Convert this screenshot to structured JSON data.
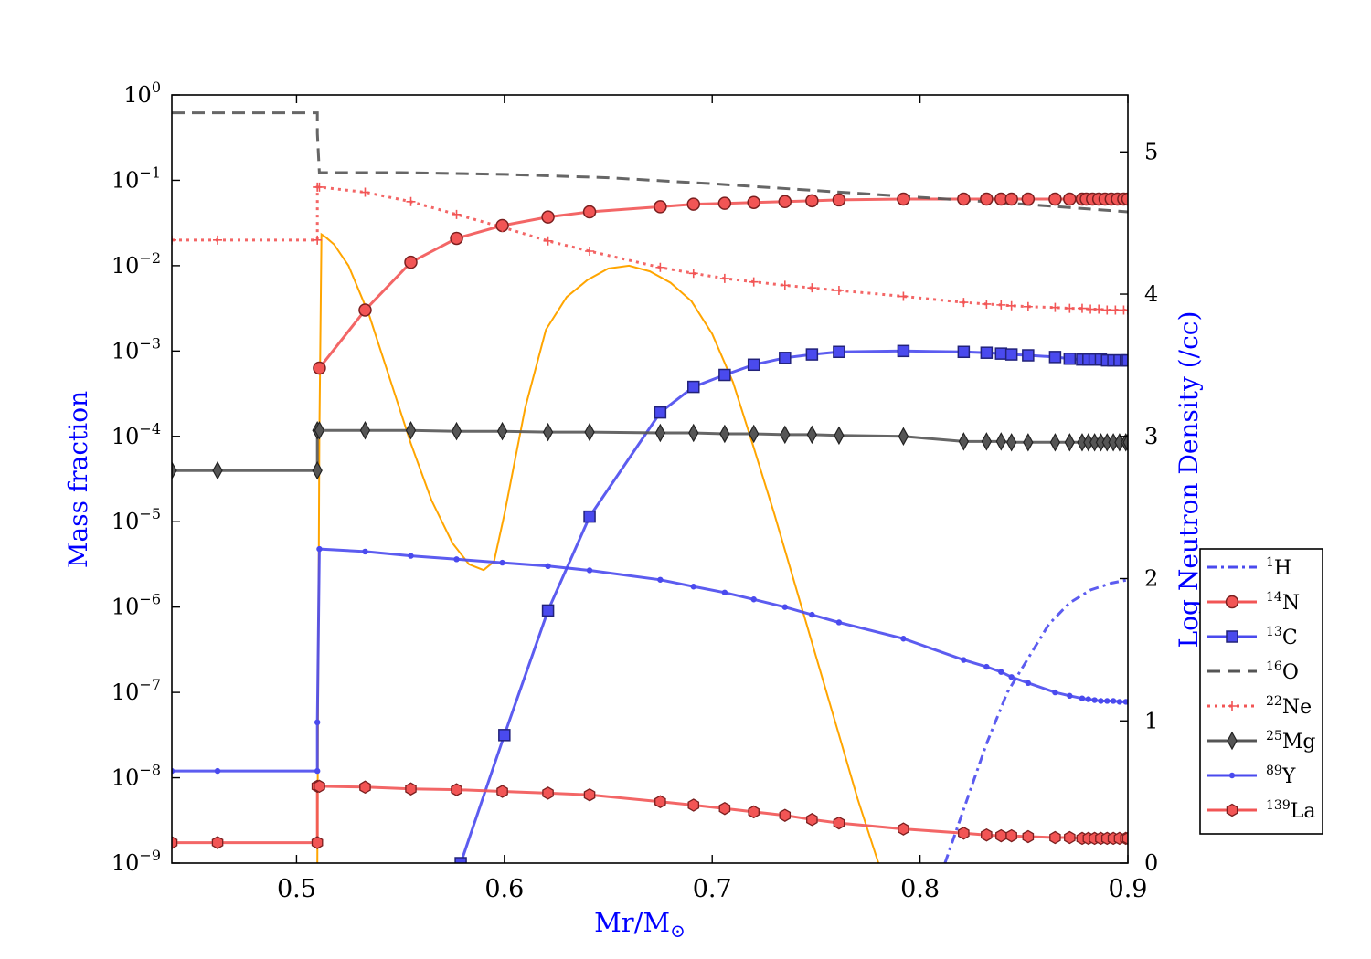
{
  "chart_data": {
    "type": "line",
    "title": "",
    "xlabel": "Mr/M",
    "xlabel_symbol": "⊙",
    "ylabel": "Mass fraction",
    "y2label": "Log Neutron Density (/cc)",
    "xlim": [
      0.44,
      0.9
    ],
    "ylim_log10": [
      -9,
      0
    ],
    "y2lim": [
      0,
      5.4
    ],
    "xticks": [
      "0.5",
      "0.6",
      "0.7",
      "0.8",
      "0.9"
    ],
    "xtick_values": [
      0.5,
      0.6,
      0.7,
      0.8,
      0.9
    ],
    "yticks": [
      {
        "base": "10",
        "exp": "0",
        "value": 0
      },
      {
        "base": "10",
        "exp": "−1",
        "value": -1
      },
      {
        "base": "10",
        "exp": "−2",
        "value": -2
      },
      {
        "base": "10",
        "exp": "−3",
        "value": -3
      },
      {
        "base": "10",
        "exp": "−4",
        "value": -4
      },
      {
        "base": "10",
        "exp": "−5",
        "value": -5
      },
      {
        "base": "10",
        "exp": "−6",
        "value": -6
      },
      {
        "base": "10",
        "exp": "−7",
        "value": -7
      },
      {
        "base": "10",
        "exp": "−8",
        "value": -8
      },
      {
        "base": "10",
        "exp": "−9",
        "value": -9
      }
    ],
    "y2ticks": [
      "0",
      "1",
      "2",
      "3",
      "4",
      "5"
    ],
    "y2tick_values": [
      0,
      1,
      2,
      3,
      4,
      5
    ],
    "colors": {
      "red": "#f25555",
      "blue": "#4a4aee",
      "gray": "#555555",
      "orange": "#ffa500",
      "axis_label": "#0000ff"
    },
    "series": [
      {
        "name": "H",
        "mass_number": "1",
        "color": "#4a4aee",
        "style": "dashdot",
        "marker": "none",
        "x": [
          0.812,
          0.822,
          0.832,
          0.842,
          0.852,
          0.862,
          0.872,
          0.882,
          0.892,
          0.9
        ],
        "log10_y": [
          -9.0,
          -8.3,
          -7.6,
          -7.0,
          -6.6,
          -6.2,
          -5.95,
          -5.8,
          -5.72,
          -5.68
        ]
      },
      {
        "name": "N",
        "mass_number": "14",
        "color": "#f25555",
        "style": "solid",
        "marker": "circle",
        "x": [
          0.511,
          0.533,
          0.555,
          0.577,
          0.599,
          0.621,
          0.641,
          0.675,
          0.691,
          0.706,
          0.72,
          0.735,
          0.748,
          0.761,
          0.792,
          0.821,
          0.832,
          0.839,
          0.844,
          0.852,
          0.865,
          0.872,
          0.878,
          0.88,
          0.883,
          0.886,
          0.889,
          0.892,
          0.895,
          0.898,
          0.9
        ],
        "log10_y": [
          -3.2,
          -2.52,
          -1.96,
          -1.68,
          -1.53,
          -1.43,
          -1.37,
          -1.31,
          -1.28,
          -1.27,
          -1.26,
          -1.25,
          -1.24,
          -1.23,
          -1.22,
          -1.22,
          -1.22,
          -1.22,
          -1.22,
          -1.22,
          -1.22,
          -1.22,
          -1.22,
          -1.22,
          -1.22,
          -1.22,
          -1.22,
          -1.22,
          -1.22,
          -1.22,
          -1.22
        ]
      },
      {
        "name": "C",
        "mass_number": "13",
        "color": "#4a4aee",
        "style": "solid",
        "marker": "square",
        "x": [
          0.579,
          0.6,
          0.621,
          0.641,
          0.675,
          0.691,
          0.706,
          0.72,
          0.735,
          0.748,
          0.761,
          0.792,
          0.821,
          0.832,
          0.839,
          0.844,
          0.852,
          0.865,
          0.872,
          0.878,
          0.881,
          0.884,
          0.887,
          0.89,
          0.893,
          0.896,
          0.899,
          0.9
        ],
        "log10_y": [
          -9.0,
          -7.5,
          -6.04,
          -4.94,
          -3.72,
          -3.42,
          -3.28,
          -3.16,
          -3.08,
          -3.04,
          -3.01,
          -3.0,
          -3.01,
          -3.02,
          -3.03,
          -3.04,
          -3.05,
          -3.07,
          -3.09,
          -3.1,
          -3.1,
          -3.1,
          -3.1,
          -3.11,
          -3.11,
          -3.11,
          -3.11,
          -3.11
        ]
      },
      {
        "name": "O",
        "mass_number": "16",
        "color": "#555555",
        "style": "dashed",
        "marker": "none",
        "x": [
          0.44,
          0.51,
          0.51,
          0.511,
          0.55,
          0.6,
          0.65,
          0.7,
          0.75,
          0.8,
          0.85,
          0.9
        ],
        "log10_y": [
          -0.21,
          -0.21,
          -0.45,
          -0.91,
          -0.91,
          -0.93,
          -0.97,
          -1.04,
          -1.12,
          -1.2,
          -1.28,
          -1.37
        ]
      },
      {
        "name": "Ne",
        "mass_number": "22",
        "color": "#f25555",
        "style": "dotted",
        "marker": "plus",
        "x": [
          0.44,
          0.462,
          0.51,
          0.51,
          0.511,
          0.533,
          0.555,
          0.577,
          0.599,
          0.621,
          0.641,
          0.675,
          0.691,
          0.706,
          0.72,
          0.735,
          0.748,
          0.761,
          0.792,
          0.821,
          0.832,
          0.839,
          0.844,
          0.852,
          0.865,
          0.872,
          0.878,
          0.882,
          0.886,
          0.89,
          0.894,
          0.898,
          0.9
        ],
        "log10_y": [
          -1.7,
          -1.7,
          -1.7,
          -1.08,
          -1.08,
          -1.14,
          -1.25,
          -1.4,
          -1.55,
          -1.71,
          -1.83,
          -2.02,
          -2.09,
          -2.15,
          -2.19,
          -2.23,
          -2.26,
          -2.29,
          -2.36,
          -2.43,
          -2.45,
          -2.46,
          -2.47,
          -2.48,
          -2.49,
          -2.5,
          -2.5,
          -2.51,
          -2.51,
          -2.52,
          -2.52,
          -2.52,
          -2.52
        ]
      },
      {
        "name": "Mg",
        "mass_number": "25",
        "color": "#555555",
        "style": "solid",
        "marker": "diamond",
        "x": [
          0.44,
          0.462,
          0.51,
          0.51,
          0.511,
          0.533,
          0.555,
          0.577,
          0.599,
          0.621,
          0.641,
          0.675,
          0.691,
          0.706,
          0.72,
          0.735,
          0.748,
          0.761,
          0.792,
          0.821,
          0.832,
          0.839,
          0.844,
          0.852,
          0.865,
          0.872,
          0.878,
          0.881,
          0.884,
          0.887,
          0.89,
          0.893,
          0.896,
          0.899,
          0.9
        ],
        "log10_y": [
          -4.4,
          -4.4,
          -4.4,
          -3.93,
          -3.93,
          -3.93,
          -3.93,
          -3.94,
          -3.94,
          -3.95,
          -3.95,
          -3.96,
          -3.96,
          -3.97,
          -3.97,
          -3.98,
          -3.98,
          -3.99,
          -4.0,
          -4.06,
          -4.06,
          -4.06,
          -4.07,
          -4.07,
          -4.07,
          -4.07,
          -4.07,
          -4.07,
          -4.07,
          -4.07,
          -4.07,
          -4.07,
          -4.07,
          -4.07,
          -4.07
        ]
      },
      {
        "name": "Y",
        "mass_number": "89",
        "color": "#4a4aee",
        "style": "solid",
        "marker": "dot",
        "x": [
          0.44,
          0.462,
          0.51,
          0.51,
          0.511,
          0.533,
          0.555,
          0.577,
          0.599,
          0.621,
          0.641,
          0.675,
          0.691,
          0.706,
          0.72,
          0.735,
          0.748,
          0.761,
          0.792,
          0.821,
          0.832,
          0.839,
          0.844,
          0.852,
          0.865,
          0.872,
          0.878,
          0.881,
          0.884,
          0.887,
          0.89,
          0.893,
          0.896,
          0.899,
          0.9
        ],
        "log10_y": [
          -7.92,
          -7.92,
          -7.92,
          -7.35,
          -5.32,
          -5.35,
          -5.4,
          -5.44,
          -5.48,
          -5.52,
          -5.57,
          -5.68,
          -5.76,
          -5.83,
          -5.91,
          -6.0,
          -6.09,
          -6.18,
          -6.37,
          -6.62,
          -6.7,
          -6.76,
          -6.82,
          -6.89,
          -7.0,
          -7.04,
          -7.07,
          -7.08,
          -7.09,
          -7.1,
          -7.1,
          -7.1,
          -7.11,
          -7.11,
          -7.11
        ]
      },
      {
        "name": "La",
        "mass_number": "139",
        "color": "#f25555",
        "style": "solid",
        "marker": "hexagon",
        "x": [
          0.44,
          0.462,
          0.51,
          0.51,
          0.511,
          0.533,
          0.555,
          0.577,
          0.599,
          0.621,
          0.641,
          0.675,
          0.691,
          0.706,
          0.72,
          0.735,
          0.748,
          0.761,
          0.792,
          0.821,
          0.832,
          0.839,
          0.844,
          0.852,
          0.865,
          0.872,
          0.878,
          0.881,
          0.884,
          0.887,
          0.89,
          0.893,
          0.896,
          0.899,
          0.9
        ],
        "log10_y": [
          -8.76,
          -8.76,
          -8.76,
          -8.1,
          -8.1,
          -8.11,
          -8.13,
          -8.14,
          -8.16,
          -8.18,
          -8.2,
          -8.28,
          -8.32,
          -8.36,
          -8.4,
          -8.44,
          -8.49,
          -8.53,
          -8.6,
          -8.65,
          -8.67,
          -8.68,
          -8.68,
          -8.69,
          -8.7,
          -8.7,
          -8.71,
          -8.71,
          -8.71,
          -8.71,
          -8.71,
          -8.71,
          -8.71,
          -8.71,
          -8.71
        ]
      }
    ],
    "neutron_density": {
      "name": "Log Neutron Density",
      "axis": "right",
      "color": "#ffa500",
      "x": [
        0.51,
        0.511,
        0.512,
        0.514,
        0.518,
        0.525,
        0.535,
        0.545,
        0.555,
        0.565,
        0.575,
        0.583,
        0.59,
        0.595,
        0.6,
        0.61,
        0.62,
        0.63,
        0.64,
        0.65,
        0.66,
        0.67,
        0.68,
        0.69,
        0.7,
        0.71,
        0.72,
        0.73,
        0.74,
        0.75,
        0.76,
        0.77,
        0.78
      ],
      "y": [
        0.0,
        3.0,
        4.42,
        4.4,
        4.35,
        4.2,
        3.85,
        3.4,
        2.95,
        2.55,
        2.25,
        2.1,
        2.06,
        2.12,
        2.45,
        3.2,
        3.75,
        3.98,
        4.1,
        4.18,
        4.2,
        4.16,
        4.08,
        3.95,
        3.72,
        3.38,
        2.92,
        2.45,
        1.95,
        1.45,
        0.95,
        0.45,
        0.0
      ]
    },
    "legend": {
      "position": "right",
      "entries": [
        "H",
        "N",
        "C",
        "O",
        "Ne",
        "Mg",
        "Y",
        "La"
      ]
    }
  }
}
